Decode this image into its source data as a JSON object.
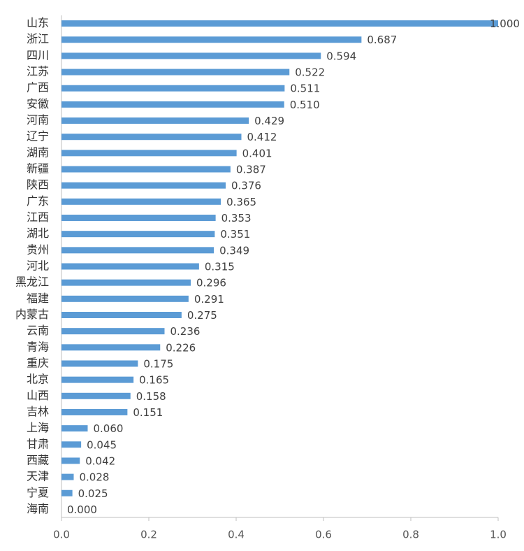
{
  "chart_data": {
    "type": "hbar",
    "categories": [
      "山东",
      "浙江",
      "四川",
      "江苏",
      "广西",
      "安徽",
      "河南",
      "辽宁",
      "湖南",
      "新疆",
      "陕西",
      "广东",
      "江西",
      "湖北",
      "贵州",
      "河北",
      "黑龙江",
      "福建",
      "内蒙古",
      "云南",
      "青海",
      "重庆",
      "北京",
      "山西",
      "吉林",
      "上海",
      "甘肃",
      "西藏",
      "天津",
      "宁夏",
      "海南"
    ],
    "values": [
      1.0,
      0.687,
      0.594,
      0.522,
      0.511,
      0.51,
      0.429,
      0.412,
      0.401,
      0.387,
      0.376,
      0.365,
      0.353,
      0.351,
      0.349,
      0.315,
      0.296,
      0.291,
      0.275,
      0.236,
      0.226,
      0.175,
      0.165,
      0.158,
      0.151,
      0.06,
      0.045,
      0.042,
      0.028,
      0.025,
      0.0
    ],
    "value_labels": [
      "1.000",
      "0.687",
      "0.594",
      "0.522",
      "0.511",
      "0.510",
      "0.429",
      "0.412",
      "0.401",
      "0.387",
      "0.376",
      "0.365",
      "0.353",
      "0.351",
      "0.349",
      "0.315",
      "0.296",
      "0.291",
      "0.275",
      "0.236",
      "0.226",
      "0.175",
      "0.165",
      "0.158",
      "0.151",
      "0.060",
      "0.045",
      "0.042",
      "0.028",
      "0.025",
      "0.000"
    ],
    "color": "#5b9bd5",
    "xlim": [
      0,
      1
    ],
    "xticks": [
      {
        "value": 0,
        "label": "0.0"
      },
      0.2,
      0.4,
      0.6,
      0.8,
      {
        "value": 1,
        "label": "1.0"
      }
    ]
  }
}
